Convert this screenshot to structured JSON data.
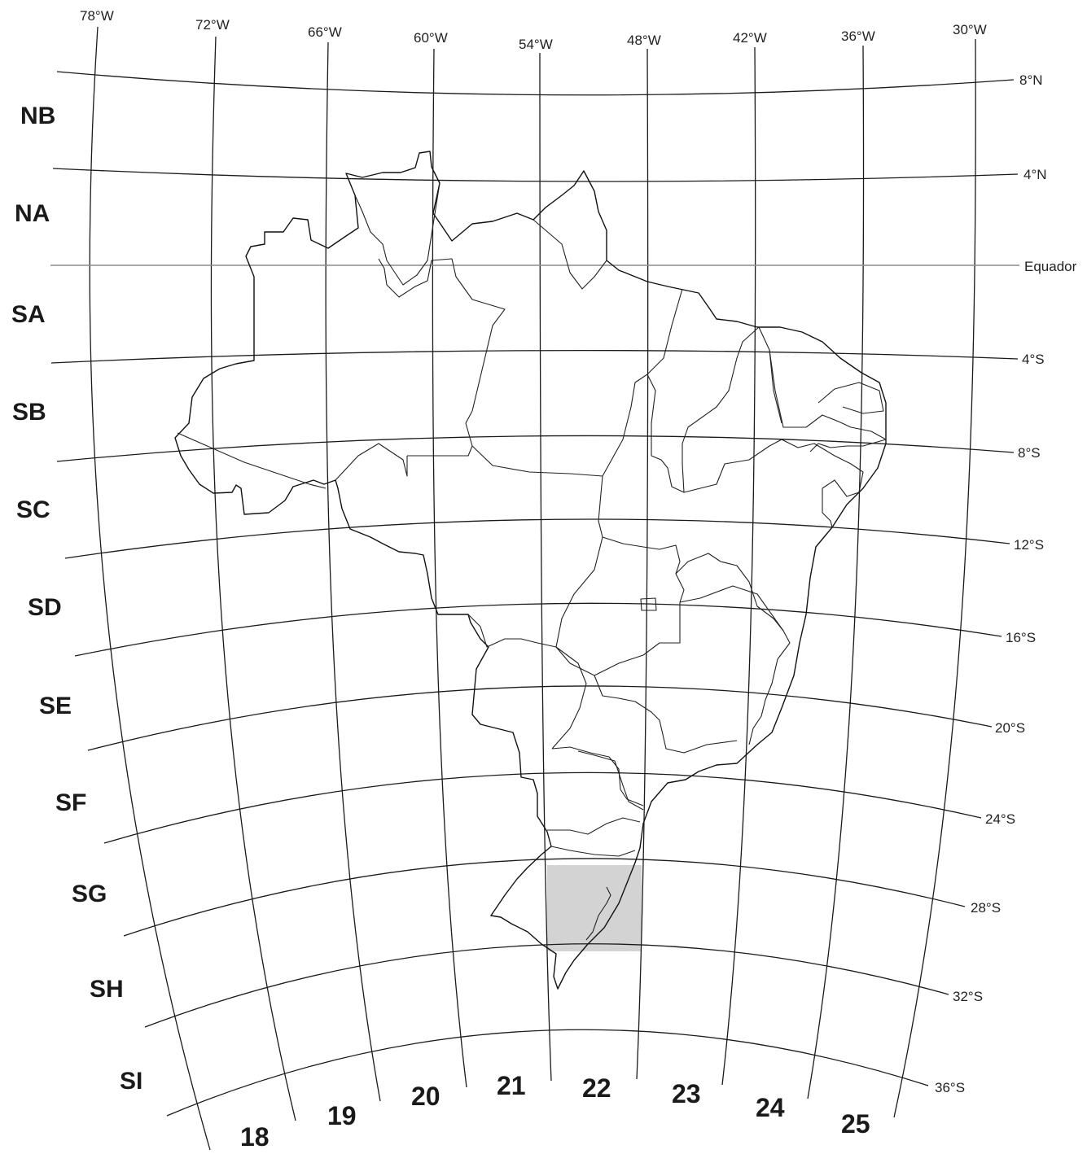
{
  "longitude_labels": [
    "78°W",
    "72°W",
    "66°W",
    "60°W",
    "54°W",
    "48°W",
    "42°W",
    "36°W",
    "30°W"
  ],
  "latitude_labels": [
    "8°N",
    "4°N",
    "Equador",
    "4°S",
    "8°S",
    "12°S",
    "16°S",
    "20°S",
    "24°S",
    "28°S",
    "32°S",
    "36°S"
  ],
  "row_zones": [
    "NB",
    "NA",
    "SA",
    "SB",
    "SC",
    "SD",
    "SE",
    "SF",
    "SG",
    "SH",
    "SI"
  ],
  "column_zones": [
    "18",
    "19",
    "20",
    "21",
    "22",
    "23",
    "24",
    "25"
  ],
  "highlight": {
    "zone_row": "SH",
    "zone_column": "22",
    "color": "#d3d3d3"
  },
  "colors": {
    "grid": "#1a1a1a",
    "equator": "#8c8c8c",
    "highlight": "#d3d3d3"
  }
}
